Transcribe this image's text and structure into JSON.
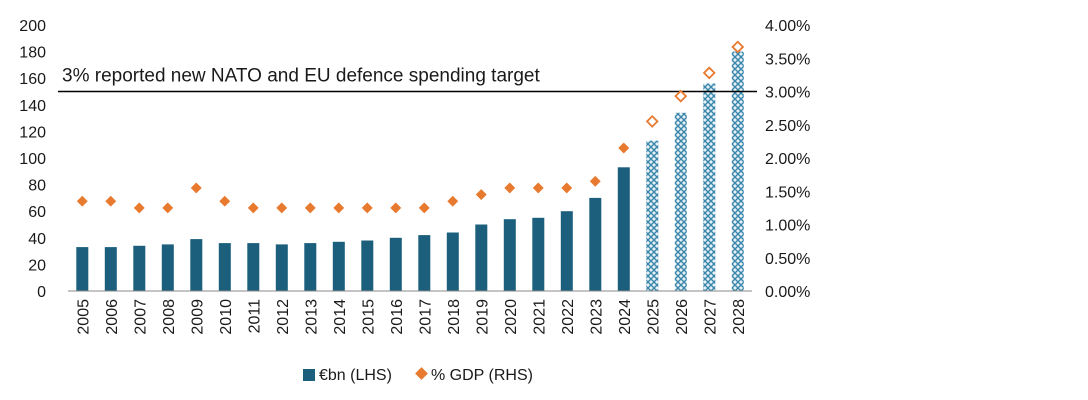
{
  "chart_data": {
    "type": "bar",
    "categories": [
      "2005",
      "2006",
      "2007",
      "2008",
      "2009",
      "2010",
      "2011",
      "2012",
      "2013",
      "2014",
      "2015",
      "2016",
      "2017",
      "2018",
      "2019",
      "2020",
      "2021",
      "2022",
      "2023",
      "2024",
      "2025",
      "2026",
      "2027",
      "2028"
    ],
    "forecast_from": "2025",
    "series": [
      {
        "name": "€bn (LHS)",
        "type": "bar",
        "axis": "left",
        "color": "#1b5f7d",
        "values": [
          33,
          33,
          34,
          35,
          39,
          36,
          36,
          35,
          36,
          37,
          38,
          40,
          42,
          44,
          50,
          54,
          55,
          60,
          70,
          93,
          113,
          134,
          156,
          180
        ]
      },
      {
        "name": "% GDP (RHS)",
        "type": "scatter",
        "axis": "right",
        "color": "#e87a2f",
        "values": [
          1.35,
          1.35,
          1.25,
          1.25,
          1.55,
          1.35,
          1.25,
          1.25,
          1.25,
          1.25,
          1.25,
          1.25,
          1.25,
          1.35,
          1.45,
          1.55,
          1.55,
          1.55,
          1.65,
          2.15,
          2.55,
          2.93,
          3.28,
          3.67
        ]
      }
    ],
    "y_left": {
      "min": 0,
      "max": 200,
      "step": 20
    },
    "y_right": {
      "min": 0,
      "max": 4,
      "step": 0.5,
      "format": "percent2"
    },
    "y_left_ticks": [
      "0",
      "20",
      "40",
      "60",
      "80",
      "100",
      "120",
      "140",
      "160",
      "180",
      "200"
    ],
    "y_right_ticks": [
      "0.00%",
      "0.50%",
      "1.00%",
      "1.50%",
      "2.00%",
      "2.50%",
      "3.00%",
      "3.50%",
      "4.00%"
    ],
    "reference_line": {
      "value": 3.0,
      "axis": "right",
      "label": "3% reported new NATO and EU defence spending target"
    },
    "legend": [
      "€bn (LHS)",
      "% GDP (RHS)"
    ],
    "legend_position": "bottom-center"
  }
}
